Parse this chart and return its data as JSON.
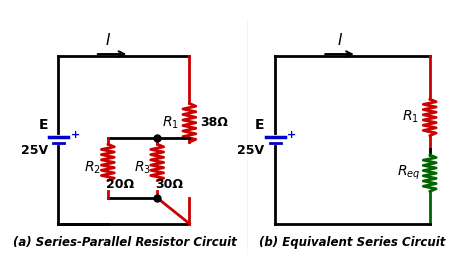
{
  "bg_color": "#ffffff",
  "title_a": "(a) Series-Parallel Resistor Circuit",
  "title_b": "(b) Equivalent Series Circuit",
  "wire_color": "#000000",
  "resistor_color_red": "#cc0000",
  "resistor_color_green": "#006600",
  "battery_color": "#0000cc",
  "current_label": "I",
  "voltage_label_E": "E",
  "voltage_label_V": "25V",
  "R1_label": "R",
  "R1_sub": "1",
  "R1_val": "38Ω",
  "R2_label": "R",
  "R2_sub": "2",
  "R2_val": "20Ω",
  "R3_label": "R",
  "R3_sub": "3",
  "R3_val": "30Ω",
  "Req_label": "R",
  "Req_sub": "eq"
}
